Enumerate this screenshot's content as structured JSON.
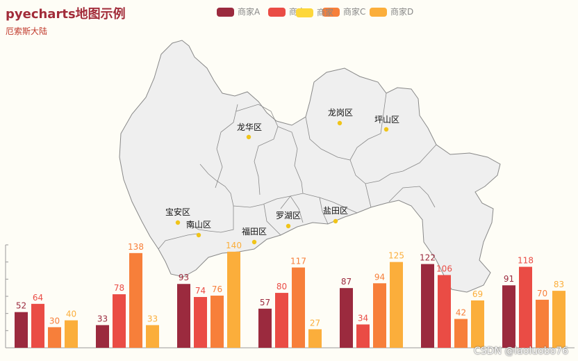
{
  "chart_data": {
    "type": "bar",
    "title": "pyecharts地图示例",
    "subtitle": "厄索斯大陆",
    "legend_position": "top-center",
    "series": [
      {
        "name": "商家A",
        "color": "#9b2a3e",
        "values": [
          52,
          33,
          93,
          57,
          87,
          122,
          91
        ]
      },
      {
        "name": "商家B",
        "color": "#ea4c45",
        "values": [
          64,
          78,
          74,
          80,
          34,
          106,
          118
        ]
      },
      {
        "name": "商家C",
        "color": "#f77f3a",
        "values": [
          30,
          138,
          76,
          117,
          94,
          42,
          70
        ]
      },
      {
        "name": "商家D",
        "color": "#fbae3b",
        "values": [
          40,
          33,
          140,
          27,
          125,
          69,
          83
        ]
      }
    ],
    "legend_overlay": {
      "name": "商家",
      "color": "#fdd73b"
    },
    "ylim": [
      0,
      150
    ],
    "map": {
      "type": "geo-scatter",
      "region": "深圳",
      "fill": "#efefef",
      "stroke": "#888888",
      "point_color": "#f0c419",
      "points": [
        "龙华区",
        "龙岗区",
        "坪山区",
        "宝安区",
        "南山区",
        "福田区",
        "罗湖区",
        "盐田区"
      ]
    }
  },
  "watermark": "CSDN @laoluobo76"
}
